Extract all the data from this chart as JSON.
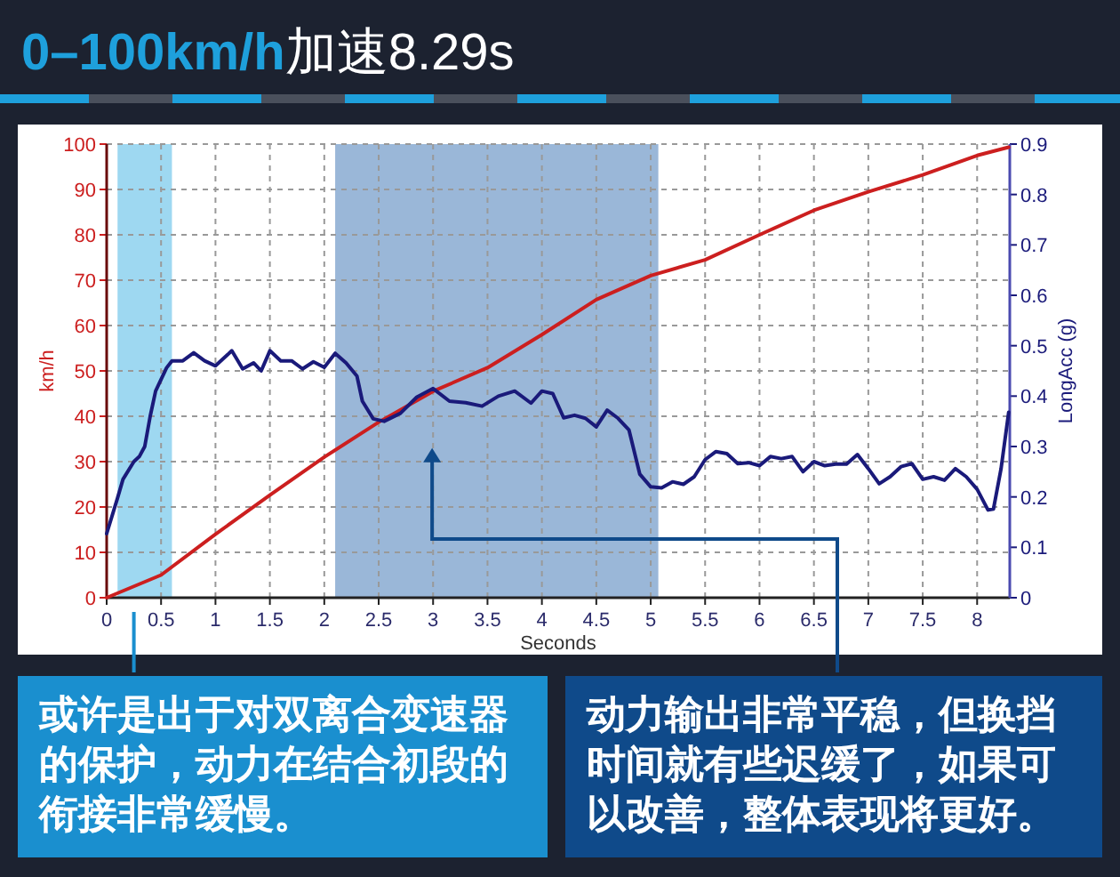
{
  "chart_data": {
    "type": "line",
    "title": "0–100km/h加速8.29s",
    "xlabel": "Seconds",
    "ylabel": "km/h",
    "y2label": "LongAcc (g)",
    "xlim": [
      0,
      8.3
    ],
    "xticks": [
      0,
      0.5,
      1,
      1.5,
      2,
      2.5,
      3,
      3.5,
      4,
      4.5,
      5,
      5.5,
      6,
      6.5,
      7,
      7.5,
      8
    ],
    "ylim": [
      0,
      100
    ],
    "yticks": [
      0,
      10,
      20,
      30,
      40,
      50,
      60,
      70,
      80,
      90,
      100
    ],
    "y2lim": [
      0,
      0.9
    ],
    "y2ticks": [
      0,
      0.1,
      0.2,
      0.3,
      0.4,
      0.5,
      0.6,
      0.7,
      0.8,
      0.9
    ],
    "grid": true,
    "line_style": "solid",
    "series": [
      {
        "color": "#cc1f1f",
        "x": [
          0,
          0.5,
          1,
          1.5,
          2,
          2.5,
          3,
          3.5,
          4,
          4.5,
          5,
          5.5,
          6,
          6.5,
          7,
          7.5,
          8,
          8.29
        ],
        "values": [
          0,
          5,
          14,
          22.6,
          31,
          38.7,
          45.5,
          50.7,
          58,
          65.7,
          71,
          74.5,
          80,
          85.4,
          89.5,
          93.2,
          97.5,
          99.3
        ]
      },
      {
        "color": "#1a1a7a",
        "axis": "y2",
        "x": [
          0,
          0.1,
          0.15,
          0.25,
          0.3,
          0.35,
          0.4,
          0.45,
          0.55,
          0.6,
          0.7,
          0.8,
          0.9,
          1.0,
          1.1,
          1.15,
          1.25,
          1.35,
          1.42,
          1.5,
          1.6,
          1.7,
          1.8,
          1.9,
          2.0,
          2.1,
          2.2,
          2.3,
          2.35,
          2.45,
          2.55,
          2.7,
          2.85,
          3.0,
          3.15,
          3.3,
          3.45,
          3.6,
          3.75,
          3.9,
          4.0,
          4.1,
          4.2,
          4.3,
          4.4,
          4.5,
          4.6,
          4.7,
          4.8,
          4.9,
          5.0,
          5.1,
          5.2,
          5.3,
          5.4,
          5.5,
          5.6,
          5.7,
          5.8,
          5.9,
          6.0,
          6.1,
          6.2,
          6.3,
          6.4,
          6.5,
          6.6,
          6.7,
          6.8,
          6.9,
          7.0,
          7.1,
          7.2,
          7.3,
          7.4,
          7.5,
          7.6,
          7.7,
          7.8,
          7.9,
          8.0,
          8.1,
          8.15,
          8.22,
          8.29
        ],
        "values": [
          0.127,
          0.198,
          0.235,
          0.27,
          0.28,
          0.3,
          0.36,
          0.41,
          0.456,
          0.47,
          0.47,
          0.486,
          0.47,
          0.46,
          0.48,
          0.49,
          0.454,
          0.466,
          0.45,
          0.49,
          0.47,
          0.47,
          0.454,
          0.468,
          0.457,
          0.485,
          0.466,
          0.44,
          0.39,
          0.355,
          0.35,
          0.366,
          0.398,
          0.415,
          0.39,
          0.387,
          0.38,
          0.4,
          0.41,
          0.386,
          0.41,
          0.405,
          0.357,
          0.362,
          0.356,
          0.339,
          0.372,
          0.356,
          0.333,
          0.245,
          0.22,
          0.218,
          0.23,
          0.225,
          0.24,
          0.274,
          0.29,
          0.286,
          0.266,
          0.268,
          0.262,
          0.28,
          0.276,
          0.28,
          0.25,
          0.27,
          0.262,
          0.265,
          0.265,
          0.284,
          0.256,
          0.226,
          0.24,
          0.26,
          0.266,
          0.235,
          0.24,
          0.233,
          0.256,
          0.24,
          0.215,
          0.174,
          0.176,
          0.256,
          0.368
        ]
      }
    ],
    "bands": [
      {
        "axis": "x",
        "from": 0.1,
        "to": 0.6,
        "color": "#29a9e1"
      },
      {
        "axis": "x",
        "from": 2.1,
        "to": 5.07,
        "color": "#1f5fa8"
      }
    ],
    "annotations": [
      "或许是出于对双离合变速器的保护，动力在结合初段的衔接非常缓慢。",
      "动力输出非常平稳，但换挡时间就有些迟缓了，如果可以改善，整体表现将更好。"
    ]
  }
}
